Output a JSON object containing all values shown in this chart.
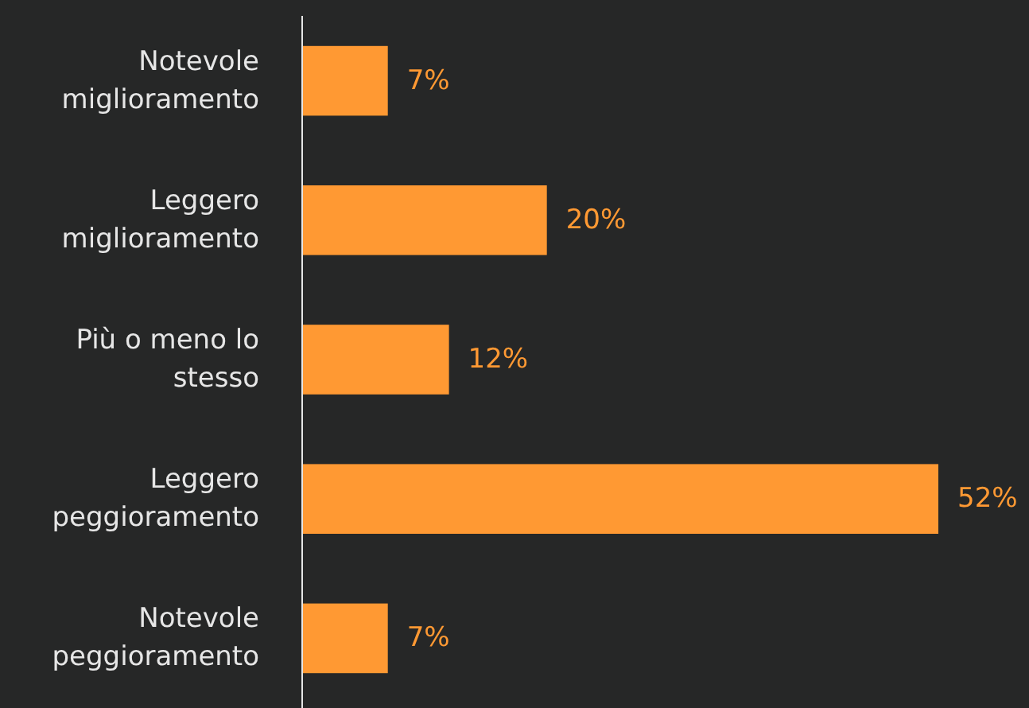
{
  "chart_data": {
    "type": "bar",
    "orientation": "horizontal",
    "categories": [
      "Notevole miglioramento",
      "Leggero miglioramento",
      "Più o meno lo stesso",
      "Leggero peggioramento",
      "Notevole peggioramento"
    ],
    "values": [
      7,
      20,
      12,
      52,
      7
    ],
    "value_labels": [
      "7%",
      "20%",
      "12%",
      "52%",
      "7%"
    ],
    "color": "#ff9933",
    "xlim": [
      0,
      52
    ],
    "tick_labels": "y"
  }
}
